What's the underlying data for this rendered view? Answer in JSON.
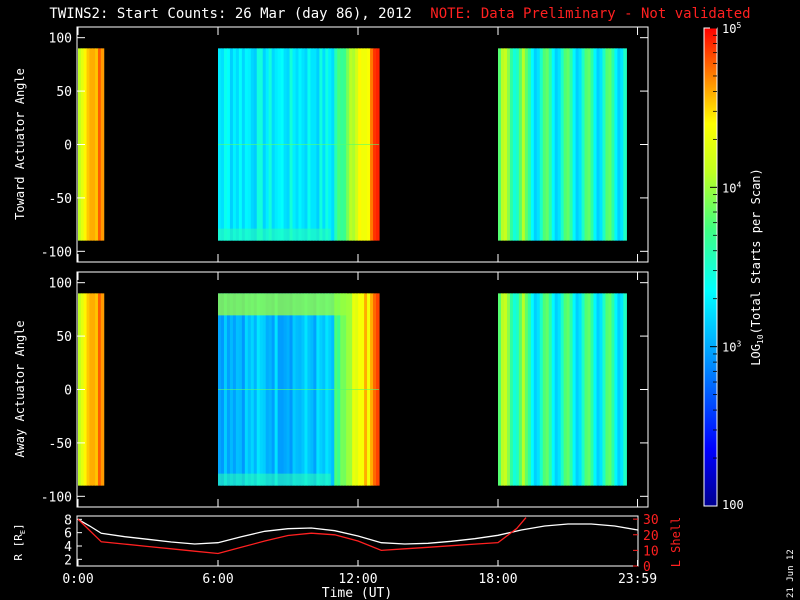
{
  "title": "TWINS2: Start Counts: 26 Mar (day  86), 2012",
  "note": "NOTE: Data Preliminary - Not validated",
  "date_stamp": "21 Jun 12",
  "colors": {
    "note": "#ff2020",
    "r_line": "#ffffff",
    "lshell_line": "#ff2020",
    "background": "#000000"
  },
  "chart_data": [
    {
      "type": "heatmap",
      "ylabel": "Toward Actuator Angle",
      "yticks": [
        100,
        50,
        0,
        -50,
        -100
      ],
      "ylim": [
        -110,
        110
      ],
      "xlim": [
        0,
        24
      ],
      "angle_range": [
        -90,
        90
      ],
      "data_intervals_hours": [
        [
          0.0,
          1.1
        ],
        [
          6.0,
          12.9
        ],
        [
          18.0,
          23.5
        ]
      ],
      "typical_log10_counts": {
        "interval_1": 4.3,
        "interval_2": 3.3,
        "interval_3": 3.7
      }
    },
    {
      "type": "heatmap",
      "ylabel": "Away Actuator Angle",
      "yticks": [
        100,
        50,
        0,
        -50,
        -100
      ],
      "ylim": [
        -110,
        110
      ],
      "xlim": [
        0,
        24
      ],
      "angle_range": [
        -90,
        90
      ],
      "data_intervals_hours": [
        [
          0.0,
          1.1
        ],
        [
          6.0,
          12.9
        ],
        [
          18.0,
          23.5
        ]
      ],
      "typical_log10_counts": {
        "interval_1": 4.3,
        "interval_2": 3.1,
        "interval_3": 3.6
      }
    },
    {
      "type": "line",
      "xlabel": "Time (UT)",
      "xticks": [
        "0:00",
        "6:00",
        "12:00",
        "18:00",
        "23:59"
      ],
      "xtick_hours": [
        0,
        6,
        12,
        18,
        23.98
      ],
      "ylabel": "R [RE]",
      "y2label": "L Shell",
      "yticks": [
        2,
        4,
        6,
        8
      ],
      "ylim": [
        1,
        8.5
      ],
      "y2ticks": [
        0,
        10,
        20,
        30
      ],
      "y2lim": [
        0,
        32
      ],
      "series": [
        {
          "name": "R",
          "x": [
            0,
            0.5,
            1,
            2,
            3,
            4,
            5,
            6,
            7,
            8,
            9,
            10,
            11,
            12,
            13,
            14,
            15,
            16,
            17,
            18,
            19,
            20,
            21,
            22,
            23,
            24
          ],
          "y": [
            8,
            7,
            5.9,
            5.4,
            5.0,
            4.6,
            4.3,
            4.5,
            5.4,
            6.2,
            6.6,
            6.7,
            6.3,
            5.5,
            4.5,
            4.3,
            4.4,
            4.7,
            5.1,
            5.6,
            6.4,
            7.0,
            7.3,
            7.3,
            7.0,
            6.4
          ]
        },
        {
          "name": "L Shell",
          "x": [
            0,
            1,
            2,
            3,
            4,
            5,
            6,
            7,
            8,
            9,
            10,
            11,
            12,
            13,
            14,
            15,
            16,
            17,
            18,
            18.8,
            19.2
          ],
          "y": [
            30,
            15.5,
            14,
            12.5,
            11,
            9.5,
            8,
            12,
            16,
            19.5,
            21,
            20,
            16,
            10,
            11,
            12,
            13,
            14,
            15,
            24,
            31
          ]
        }
      ]
    },
    {
      "type": "heatmap",
      "title": "colorbar",
      "ylabel": "LOG10(Total Starts per Scan)",
      "yticks": [
        "10^5",
        "10^4",
        "10^3",
        "100"
      ],
      "ylim": [
        2,
        5
      ],
      "colormap": "rainbow (blue-cyan-green-yellow-red)"
    }
  ],
  "colorbar_label": {
    "main": "LOG",
    "sub": "10",
    "rest": "(Total Starts per Scan)"
  },
  "colorbar_tick_labels": {
    "t5": "5",
    "t4": "4",
    "t3": "3",
    "t2": "100",
    "base": "10"
  },
  "r_axis_label": {
    "main": "R [R",
    "sub": "E",
    "close": "]"
  }
}
